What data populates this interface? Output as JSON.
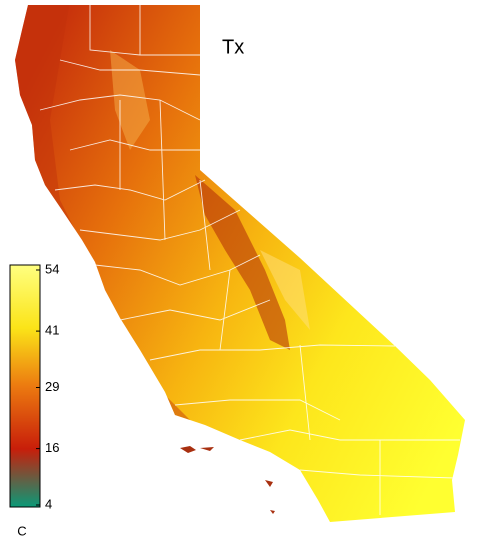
{
  "title": "Tx",
  "colorbar": {
    "lim": [
      4,
      54
    ],
    "ticks": [
      54,
      41,
      29,
      16,
      4
    ],
    "unit": "C"
  }
}
